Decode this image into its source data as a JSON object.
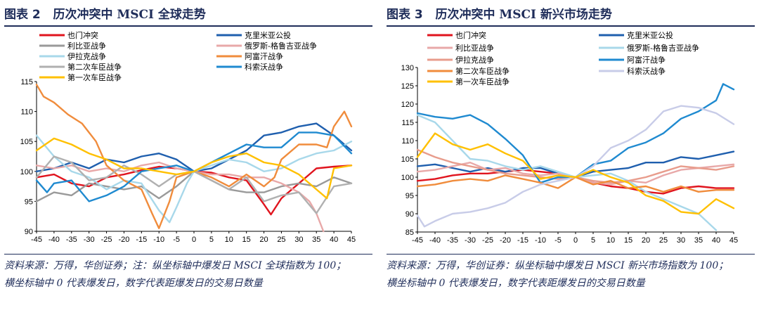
{
  "charts": [
    {
      "fig_label": "图表 2",
      "title": "历次冲突中 MSCI 全球走势",
      "source": "资料来源：万得，华创证券；注：纵坐标轴中爆发日 MSCI 全球指数为 100；横坐标轴中 0 代表爆发日，数字代表距爆发日的交易日数量"
    },
    {
      "fig_label": "图表 3",
      "title": "历次冲突中 MSCI 新兴市场走势",
      "source": "资料来源：万得，华创证券：纵坐标轴中爆发日 MSCI 新兴市场指数为 100；横坐标轴中 0 代表爆发日，数字代表距爆发日的交易日数量"
    }
  ],
  "chart_data": [
    {
      "type": "line",
      "title": "历次冲突中 MSCI 全球走势",
      "xlabel": "",
      "ylabel": "",
      "xlim": [
        -45,
        45
      ],
      "ylim": [
        90,
        115
      ],
      "yticks": [
        90,
        95,
        100,
        105,
        110,
        115
      ],
      "xticks": [
        -45,
        -40,
        -35,
        -30,
        -25,
        -20,
        -15,
        -10,
        -5,
        0,
        5,
        10,
        15,
        20,
        25,
        30,
        35,
        40,
        45
      ],
      "grid": false,
      "legend": "top",
      "series": [
        {
          "name": "也门冲突",
          "color": "#e0141e",
          "x": [
            -45,
            -40,
            -35,
            -30,
            -25,
            -20,
            -15,
            -10,
            -5,
            0,
            5,
            10,
            15,
            20,
            22,
            25,
            30,
            35,
            40,
            45
          ],
          "y": [
            99,
            99.5,
            98,
            97.5,
            99,
            99.5,
            100.2,
            100.8,
            100.5,
            100,
            99.8,
            99,
            98.5,
            94.5,
            92.8,
            95.5,
            98,
            100.5,
            100.8,
            101
          ]
        },
        {
          "name": "克里米亚公投",
          "color": "#1f5fae",
          "x": [
            -45,
            -40,
            -35,
            -30,
            -25,
            -20,
            -15,
            -10,
            -5,
            0,
            5,
            10,
            15,
            20,
            25,
            30,
            35,
            40,
            45
          ],
          "y": [
            100,
            100.5,
            101.5,
            100.5,
            102,
            101.5,
            102.5,
            103,
            102,
            100,
            100.5,
            102,
            103.5,
            106,
            106.5,
            107.5,
            108,
            106,
            103.5
          ]
        },
        {
          "name": "利比亚战争",
          "color": "#9a9a9a",
          "x": [
            -45,
            -40,
            -35,
            -30,
            -25,
            -20,
            -15,
            -10,
            -5,
            0,
            5,
            10,
            15,
            20,
            25,
            30,
            35,
            40,
            45
          ],
          "y": [
            95,
            96.5,
            96,
            98,
            97.5,
            97,
            97.5,
            95.5,
            97.5,
            100,
            98.5,
            97,
            96.5,
            96.5,
            97.5,
            98,
            97.5,
            99,
            98
          ]
        },
        {
          "name": "俄罗斯-格鲁吉亚战争",
          "color": "#e8a8a8",
          "x": [
            -45,
            -40,
            -35,
            -30,
            -25,
            -20,
            -15,
            -10,
            -5,
            0,
            5,
            10,
            15,
            20,
            25,
            30,
            33,
            35,
            37
          ],
          "y": [
            101,
            100.5,
            101,
            100,
            100.5,
            100,
            101,
            101.5,
            100.5,
            100,
            99.5,
            99.5,
            99,
            99,
            98,
            96.5,
            95,
            93,
            90
          ]
        },
        {
          "name": "伊拉克战争",
          "color": "#a8d8ea",
          "x": [
            -45,
            -40,
            -35,
            -30,
            -25,
            -20,
            -15,
            -10,
            -7,
            -5,
            -2,
            0,
            5,
            10,
            15,
            20,
            25,
            30,
            35,
            40,
            45
          ],
          "y": [
            106,
            102.5,
            100,
            99,
            97,
            98.5,
            98,
            93.5,
            91.5,
            94,
            98,
            100,
            101,
            102,
            101.5,
            100,
            100.5,
            102,
            103,
            103.5,
            105
          ]
        },
        {
          "name": "阿富汗战争",
          "color": "#f08c3c",
          "x": [
            -45,
            -43,
            -40,
            -36,
            -32,
            -28,
            -25,
            -20,
            -15,
            -12,
            -10,
            -7,
            -5,
            0,
            5,
            10,
            15,
            20,
            23,
            25,
            30,
            35,
            38,
            40,
            43,
            45
          ],
          "y": [
            114.5,
            112.5,
            111.5,
            109.5,
            108,
            105,
            101,
            98.5,
            97,
            93,
            90.5,
            95,
            99,
            100,
            99,
            97.5,
            99.5,
            97.5,
            99,
            102,
            104.5,
            104.5,
            104,
            107.5,
            110,
            107.5
          ]
        },
        {
          "name": "第二次车臣战争",
          "color": "#b0b0b0",
          "x": [
            -45,
            -40,
            -35,
            -30,
            -25,
            -20,
            -15,
            -10,
            -5,
            0,
            5,
            10,
            15,
            20,
            25,
            30,
            35,
            40,
            45
          ],
          "y": [
            99,
            102.5,
            101.5,
            98.5,
            99,
            101,
            99.5,
            97.5,
            99.5,
            100,
            98.5,
            97,
            99,
            95,
            96,
            96.5,
            93,
            97.5,
            98
          ]
        },
        {
          "name": "科索沃战争",
          "color": "#1f8ad0",
          "x": [
            -45,
            -42,
            -40,
            -35,
            -30,
            -25,
            -20,
            -15,
            -10,
            -5,
            0,
            5,
            10,
            15,
            20,
            25,
            30,
            35,
            40,
            45
          ],
          "y": [
            98.5,
            96.5,
            98,
            98.5,
            95,
            96,
            97.5,
            100,
            100.5,
            101,
            100,
            101.5,
            103,
            104.5,
            104,
            104,
            106.5,
            106.5,
            106,
            103
          ]
        },
        {
          "name": "第一次车臣战争",
          "color": "#ffc000",
          "x": [
            -45,
            -40,
            -35,
            -30,
            -25,
            -20,
            -15,
            -10,
            -5,
            0,
            5,
            10,
            15,
            20,
            25,
            30,
            35,
            38,
            40,
            45
          ],
          "y": [
            103.5,
            105.5,
            104.5,
            103,
            102,
            100.5,
            100.5,
            100,
            99.5,
            100,
            101.5,
            102.5,
            103,
            101.5,
            101,
            99.5,
            97,
            95.5,
            100.5,
            101
          ]
        }
      ]
    },
    {
      "type": "line",
      "title": "历次冲突中 MSCI 新兴市场走势",
      "xlabel": "",
      "ylabel": "",
      "xlim": [
        -45,
        45
      ],
      "ylim": [
        85,
        130
      ],
      "yticks": [
        85,
        90,
        95,
        100,
        105,
        110,
        115,
        120,
        125,
        130
      ],
      "xticks": [
        -45,
        -40,
        -35,
        -30,
        -25,
        -20,
        -15,
        -10,
        -5,
        0,
        5,
        10,
        15,
        20,
        25,
        30,
        35,
        40,
        45
      ],
      "grid": false,
      "legend": "top",
      "series": [
        {
          "name": "也门冲突",
          "color": "#e0141e",
          "x": [
            -45,
            -40,
            -35,
            -30,
            -25,
            -20,
            -15,
            -10,
            -5,
            0,
            5,
            10,
            15,
            20,
            25,
            30,
            35,
            40,
            45
          ],
          "y": [
            99,
            99.5,
            100.5,
            101,
            101,
            101.5,
            102,
            101.5,
            101,
            100,
            98.5,
            97.5,
            97,
            96,
            95.5,
            97,
            97.5,
            97,
            97
          ]
        },
        {
          "name": "克里米亚公投",
          "color": "#1f5fae",
          "x": [
            -45,
            -40,
            -35,
            -30,
            -25,
            -20,
            -15,
            -10,
            -5,
            0,
            5,
            10,
            15,
            20,
            25,
            30,
            35,
            40,
            45
          ],
          "y": [
            103,
            103.5,
            102.5,
            101.5,
            102.5,
            101.5,
            102.5,
            102.5,
            101,
            100,
            101.5,
            102,
            102.5,
            104,
            104,
            105.5,
            105,
            106,
            107
          ]
        },
        {
          "name": "利比亚战争",
          "color": "#e8a8a8",
          "x": [
            -45,
            -40,
            -35,
            -30,
            -25,
            -20,
            -15,
            -10,
            -5,
            0,
            5,
            10,
            15,
            20,
            25,
            30,
            35,
            40,
            45
          ],
          "y": [
            101.5,
            102,
            103,
            104,
            102,
            102.5,
            101,
            100.5,
            101,
            100,
            98.5,
            98,
            99,
            98.5,
            100.5,
            102,
            102.5,
            103,
            103.5
          ]
        },
        {
          "name": "俄罗斯-格鲁吉亚战争",
          "color": "#a8d8ea",
          "x": [
            -45,
            -40,
            -35,
            -30,
            -25,
            -20,
            -15,
            -10,
            -5,
            0,
            5,
            10,
            15,
            20,
            25,
            30,
            35,
            40
          ],
          "y": [
            117,
            115,
            110,
            105,
            104.5,
            103,
            102,
            103,
            101.5,
            100,
            100.5,
            101,
            99,
            96,
            94,
            92,
            90,
            85.5
          ]
        },
        {
          "name": "伊拉克战争",
          "color": "#e89c8c",
          "x": [
            -45,
            -40,
            -35,
            -30,
            -25,
            -20,
            -15,
            -10,
            -5,
            0,
            5,
            10,
            15,
            20,
            25,
            30,
            35,
            40,
            45
          ],
          "y": [
            107.5,
            105.5,
            104,
            103,
            102,
            101,
            100.5,
            100,
            99.5,
            100,
            99,
            98.5,
            99,
            100,
            101.5,
            103,
            102.5,
            102,
            103
          ]
        },
        {
          "name": "阿富汗战争",
          "color": "#1f8ad0",
          "x": [
            -45,
            -40,
            -35,
            -30,
            -25,
            -20,
            -15,
            -10,
            -5,
            0,
            5,
            10,
            15,
            20,
            25,
            30,
            35,
            40,
            42,
            45
          ],
          "y": [
            117.5,
            116.5,
            116,
            117,
            114.5,
            110.5,
            106,
            98.5,
            100,
            100,
            103.5,
            104.5,
            108,
            109.5,
            112,
            116,
            118,
            121,
            125.5,
            124
          ]
        },
        {
          "name": "第二次车臣战争",
          "color": "#f08c3c",
          "x": [
            -45,
            -40,
            -35,
            -30,
            -25,
            -20,
            -15,
            -10,
            -5,
            0,
            5,
            10,
            15,
            20,
            25,
            30,
            35,
            40,
            45
          ],
          "y": [
            97.5,
            98,
            99,
            99.5,
            99,
            100.5,
            99.5,
            98.5,
            97,
            100,
            98,
            99,
            97,
            97.5,
            96,
            97.5,
            96,
            96.5,
            96.5
          ]
        },
        {
          "name": "科索沃战争",
          "color": "#c8cce8",
          "x": [
            -45,
            -43,
            -40,
            -35,
            -30,
            -25,
            -20,
            -15,
            -10,
            -5,
            0,
            5,
            10,
            15,
            20,
            25,
            30,
            35,
            40,
            45
          ],
          "y": [
            89.5,
            86.5,
            88,
            90,
            90.5,
            91.5,
            93,
            96,
            98,
            99,
            100,
            103,
            108,
            110,
            113,
            118,
            119.5,
            119,
            117.5,
            114.5
          ]
        },
        {
          "name": "第一次车臣战争",
          "color": "#ffc000",
          "x": [
            -45,
            -40,
            -35,
            -30,
            -25,
            -20,
            -15,
            -10,
            -5,
            0,
            5,
            10,
            15,
            20,
            25,
            30,
            35,
            40,
            45
          ],
          "y": [
            105.5,
            112,
            109,
            107.5,
            109,
            106.5,
            104.5,
            99.5,
            100.5,
            100,
            102,
            100,
            98.5,
            95,
            93.5,
            90.5,
            90,
            94,
            91.5
          ]
        }
      ]
    }
  ]
}
